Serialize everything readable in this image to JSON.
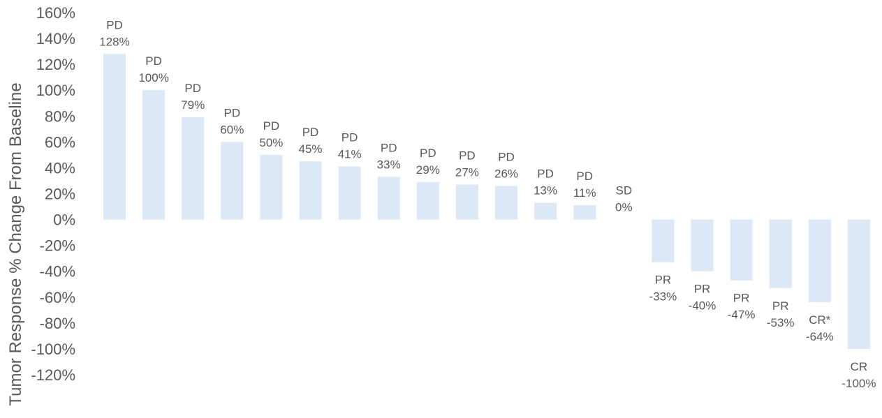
{
  "chart_data": {
    "type": "bar",
    "ylabel": "Tumor Response % Change From Baseline",
    "ylim": [
      -120,
      160
    ],
    "yticks": [
      "160%",
      "140%",
      "120%",
      "100%",
      "80%",
      "60%",
      "40%",
      "20%",
      "0%",
      "-20%",
      "-40%",
      "-60%",
      "-80%",
      "-100%",
      "-120%"
    ],
    "grid": false,
    "bar_color": "#dce8f6",
    "text_color": "#595959",
    "values": [
      128,
      100,
      79,
      60,
      50,
      45,
      41,
      33,
      29,
      27,
      26,
      13,
      11,
      0,
      -33,
      -40,
      -47,
      -53,
      -64,
      -100
    ],
    "responses": [
      "PD",
      "PD",
      "PD",
      "PD",
      "PD",
      "PD",
      "PD",
      "PD",
      "PD",
      "PD",
      "PD",
      "PD",
      "PD",
      "SD",
      "PR",
      "PR",
      "PR",
      "PR",
      "CR*",
      "CR"
    ],
    "value_labels": [
      "128%",
      "100%",
      "79%",
      "60%",
      "50%",
      "45%",
      "41%",
      "33%",
      "29%",
      "27%",
      "26%",
      "13%",
      "11%",
      "0%",
      "-33%",
      "-40%",
      "-47%",
      "-53%",
      "-64%",
      "-100%"
    ]
  }
}
